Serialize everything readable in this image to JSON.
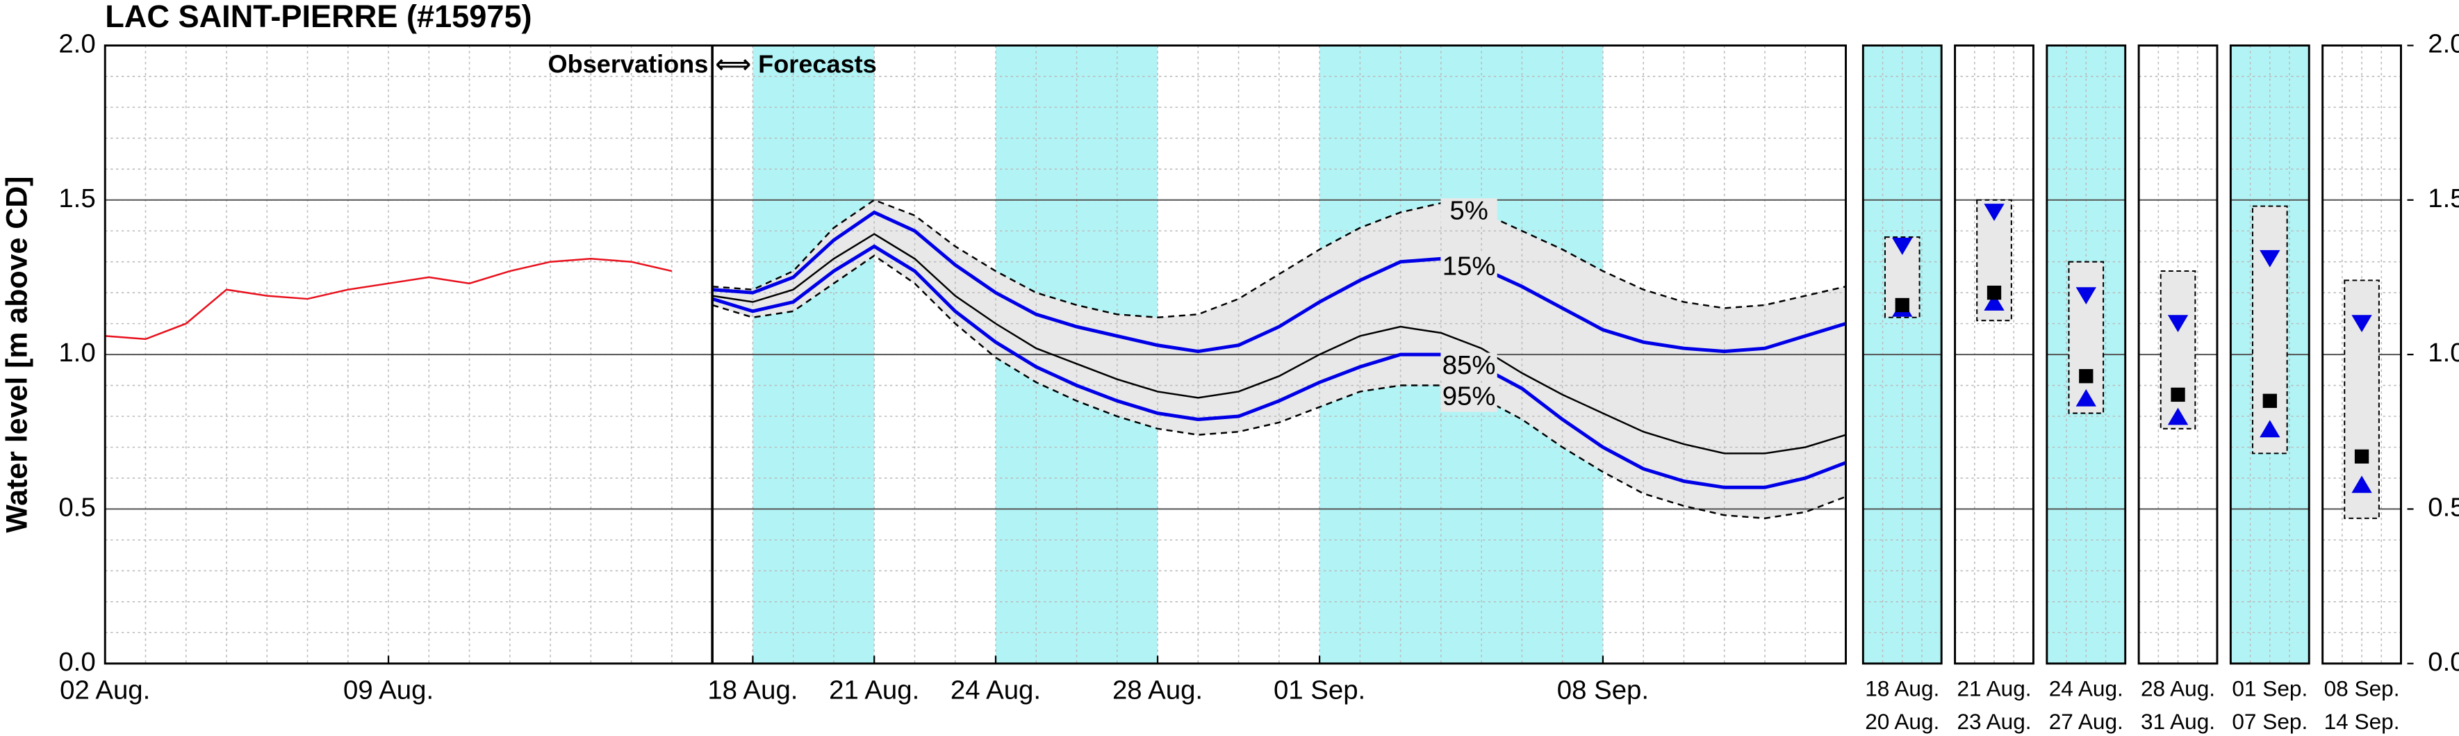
{
  "chart_data": [
    {
      "type": "line",
      "title": "LAC SAINT-PIERRE (#15975)",
      "ylabel": "Water level [m above CD]",
      "annotation": "Observations ⟺ Forecasts",
      "xlim": [
        "08-02",
        "09-14"
      ],
      "xticks": [
        {
          "value": "08-02",
          "label": "02 Aug."
        },
        {
          "value": "08-09",
          "label": "09 Aug."
        },
        {
          "value": "08-18",
          "label": "18 Aug."
        },
        {
          "value": "08-21",
          "label": "21 Aug."
        },
        {
          "value": "08-24",
          "label": "24 Aug."
        },
        {
          "value": "08-28",
          "label": "28 Aug."
        },
        {
          "value": "09-01",
          "label": "01 Sep."
        },
        {
          "value": "09-08",
          "label": "08 Sep."
        }
      ],
      "ylim": [
        0,
        2
      ],
      "yticks": [
        {
          "value": 0,
          "label": "0.0"
        },
        {
          "value": 0.5,
          "label": "0.5"
        },
        {
          "value": 1,
          "label": "1.0"
        },
        {
          "value": 1.5,
          "label": "1.5"
        },
        {
          "value": 2,
          "label": "2.0"
        }
      ],
      "split_x": "08-17",
      "shaded": [
        [
          "08-18",
          "08-21"
        ],
        [
          "08-24",
          "08-28"
        ],
        [
          "09-01",
          "09-08"
        ]
      ],
      "shade_color": "#b2f4f6",
      "band_color": "#e8e8e8",
      "series": [
        {
          "color": "#e8101c",
          "style": "solid",
          "x": [
            "08-02",
            "08-03",
            "08-04",
            "08-05",
            "08-06",
            "08-07",
            "08-08",
            "08-09",
            "08-10",
            "08-11",
            "08-12",
            "08-13",
            "08-14",
            "08-15",
            "08-16"
          ],
          "values": [
            1.06,
            1.05,
            1.1,
            1.21,
            1.19,
            1.18,
            1.21,
            1.23,
            1.25,
            1.23,
            1.27,
            1.3,
            1.31,
            1.3,
            1.27
          ]
        },
        {
          "name": "5%",
          "color": "#000000",
          "style": "dashed",
          "x": [
            "08-17",
            "08-18",
            "08-19",
            "08-20",
            "08-21",
            "08-22",
            "08-23",
            "08-24",
            "08-25",
            "08-26",
            "08-27",
            "08-28",
            "08-29",
            "08-30",
            "08-31",
            "09-01",
            "09-02",
            "09-03",
            "09-04",
            "09-05",
            "09-06",
            "09-07",
            "09-08",
            "09-09",
            "09-10",
            "09-11",
            "09-12",
            "09-13",
            "09-14"
          ],
          "values": [
            1.22,
            1.21,
            1.27,
            1.41,
            1.5,
            1.45,
            1.35,
            1.27,
            1.2,
            1.16,
            1.13,
            1.12,
            1.13,
            1.18,
            1.26,
            1.34,
            1.41,
            1.46,
            1.49,
            1.46,
            1.4,
            1.34,
            1.27,
            1.21,
            1.17,
            1.15,
            1.16,
            1.19,
            1.22
          ]
        },
        {
          "name": "15%",
          "color": "#0000e6",
          "style": "thick",
          "x": [
            "08-17",
            "08-18",
            "08-19",
            "08-20",
            "08-21",
            "08-22",
            "08-23",
            "08-24",
            "08-25",
            "08-26",
            "08-27",
            "08-28",
            "08-29",
            "08-30",
            "08-31",
            "09-01",
            "09-02",
            "09-03",
            "09-04",
            "09-05",
            "09-06",
            "09-07",
            "09-08",
            "09-09",
            "09-10",
            "09-11",
            "09-12",
            "09-13",
            "09-14"
          ],
          "values": [
            1.21,
            1.2,
            1.25,
            1.37,
            1.46,
            1.4,
            1.29,
            1.2,
            1.13,
            1.09,
            1.06,
            1.03,
            1.01,
            1.03,
            1.09,
            1.17,
            1.24,
            1.3,
            1.31,
            1.28,
            1.22,
            1.15,
            1.08,
            1.04,
            1.02,
            1.01,
            1.02,
            1.06,
            1.1
          ]
        },
        {
          "color": "#000000",
          "style": "solid",
          "x": [
            "08-17",
            "08-18",
            "08-19",
            "08-20",
            "08-21",
            "08-22",
            "08-23",
            "08-24",
            "08-25",
            "08-26",
            "08-27",
            "08-28",
            "08-29",
            "08-30",
            "08-31",
            "09-01",
            "09-02",
            "09-03",
            "09-04",
            "09-05",
            "09-06",
            "09-07",
            "09-08",
            "09-09",
            "09-10",
            "09-11",
            "09-12",
            "09-13",
            "09-14"
          ],
          "values": [
            1.19,
            1.17,
            1.21,
            1.31,
            1.39,
            1.31,
            1.19,
            1.1,
            1.02,
            0.97,
            0.92,
            0.88,
            0.86,
            0.88,
            0.93,
            1.0,
            1.06,
            1.09,
            1.07,
            1.02,
            0.94,
            0.87,
            0.81,
            0.75,
            0.71,
            0.68,
            0.68,
            0.7,
            0.74
          ]
        },
        {
          "name": "85%",
          "color": "#0000e6",
          "style": "thick",
          "x": [
            "08-17",
            "08-18",
            "08-19",
            "08-20",
            "08-21",
            "08-22",
            "08-23",
            "08-24",
            "08-25",
            "08-26",
            "08-27",
            "08-28",
            "08-29",
            "08-30",
            "08-31",
            "09-01",
            "09-02",
            "09-03",
            "09-04",
            "09-05",
            "09-06",
            "09-07",
            "09-08",
            "09-09",
            "09-10",
            "09-11",
            "09-12",
            "09-13",
            "09-14"
          ],
          "values": [
            1.18,
            1.14,
            1.17,
            1.27,
            1.35,
            1.27,
            1.14,
            1.04,
            0.96,
            0.9,
            0.85,
            0.81,
            0.79,
            0.8,
            0.85,
            0.91,
            0.96,
            1.0,
            1.0,
            0.96,
            0.89,
            0.79,
            0.7,
            0.63,
            0.59,
            0.57,
            0.57,
            0.6,
            0.65
          ]
        },
        {
          "name": "95%",
          "color": "#000000",
          "style": "dashed",
          "x": [
            "08-17",
            "08-18",
            "08-19",
            "08-20",
            "08-21",
            "08-22",
            "08-23",
            "08-24",
            "08-25",
            "08-26",
            "08-27",
            "08-28",
            "08-29",
            "08-30",
            "08-31",
            "09-01",
            "09-02",
            "09-03",
            "09-04",
            "09-05",
            "09-06",
            "09-07",
            "09-08",
            "09-09",
            "09-10",
            "09-11",
            "09-12",
            "09-13",
            "09-14"
          ],
          "values": [
            1.16,
            1.12,
            1.14,
            1.23,
            1.32,
            1.23,
            1.1,
            0.99,
            0.91,
            0.85,
            0.8,
            0.76,
            0.74,
            0.75,
            0.78,
            0.83,
            0.88,
            0.9,
            0.9,
            0.86,
            0.79,
            0.7,
            0.62,
            0.55,
            0.51,
            0.48,
            0.47,
            0.49,
            0.54
          ]
        }
      ]
    },
    {
      "type": "range-panels",
      "ylim": [
        0,
        2
      ],
      "yticks": [
        {
          "value": 0,
          "label": "0.0"
        },
        {
          "value": 0.5,
          "label": "0.5"
        },
        {
          "value": 1,
          "label": "1.0"
        },
        {
          "value": 1.5,
          "label": "1.5"
        },
        {
          "value": 2,
          "label": "2.0"
        }
      ],
      "shade_color": "#b2f4f6",
      "band_color": "#e8e8e8",
      "marker_color": "#0000e6",
      "panels": [
        {
          "start": "18 Aug.",
          "end": "20 Aug.",
          "shaded": true,
          "low": 1.12,
          "high": 1.38,
          "p15": 1.35,
          "median": 1.16,
          "p85": 1.15
        },
        {
          "start": "21 Aug.",
          "end": "23 Aug.",
          "shaded": false,
          "low": 1.11,
          "high": 1.5,
          "p15": 1.46,
          "median": 1.2,
          "p85": 1.17
        },
        {
          "start": "24 Aug.",
          "end": "27 Aug.",
          "shaded": true,
          "low": 0.81,
          "high": 1.3,
          "p15": 1.19,
          "median": 0.93,
          "p85": 0.86
        },
        {
          "start": "28 Aug.",
          "end": "31 Aug.",
          "shaded": false,
          "low": 0.76,
          "high": 1.27,
          "p15": 1.1,
          "median": 0.87,
          "p85": 0.8
        },
        {
          "start": "01 Sep.",
          "end": "07 Sep.",
          "shaded": true,
          "low": 0.68,
          "high": 1.48,
          "p15": 1.31,
          "median": 0.85,
          "p85": 0.76
        },
        {
          "start": "08 Sep.",
          "end": "14 Sep.",
          "shaded": false,
          "low": 0.47,
          "high": 1.24,
          "p15": 1.1,
          "median": 0.67,
          "p85": 0.58
        }
      ]
    }
  ]
}
